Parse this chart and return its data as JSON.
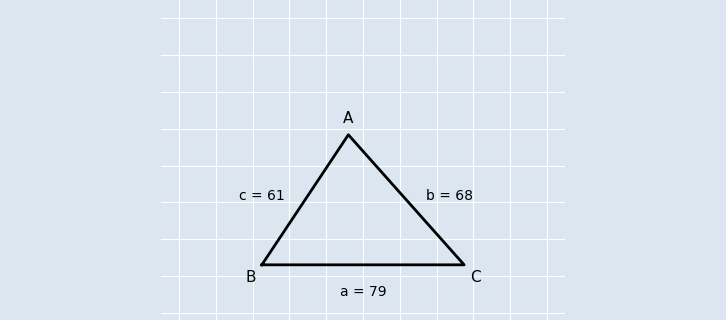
{
  "a": 79,
  "b": 68,
  "c": 61,
  "background_color": "#dce6f1",
  "triangle_color": "#000000",
  "line_width": 2.0,
  "label_A": "A",
  "label_B": "B",
  "label_C": "C",
  "label_a": "a = 79",
  "label_b": "b = 68",
  "label_c": "c = 61",
  "font_size_vertex": 11,
  "font_size_side": 10,
  "grid_color": "#ffffff",
  "grid_linewidth": 0.8,
  "xlim": [
    -1.5,
    9.5
  ],
  "ylim": [
    -1.2,
    7.5
  ],
  "grid_step": 1.0
}
